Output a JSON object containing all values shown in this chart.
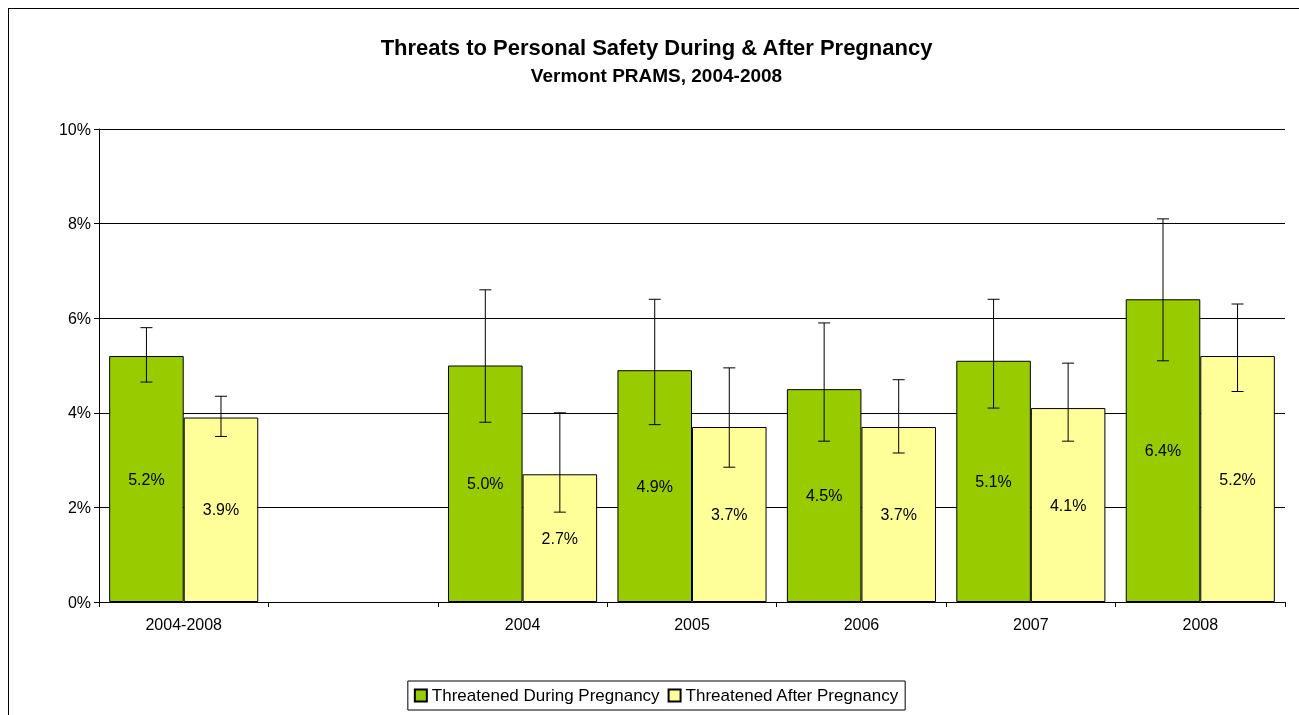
{
  "chart_data": {
    "type": "bar",
    "title": "Threats to Personal Safety During & After Pregnancy",
    "subtitle": "Vermont PRAMS, 2004-2008",
    "categories": [
      "2004-2008",
      null,
      "2004",
      "2005",
      "2006",
      "2007",
      "2008"
    ],
    "series": [
      {
        "name": "Threatened During Pregnancy",
        "color": "#99cc00",
        "values": [
          5.2,
          null,
          5.0,
          4.9,
          4.5,
          5.1,
          6.4
        ],
        "value_labels": [
          "5.2%",
          null,
          "5.0%",
          "4.9%",
          "4.5%",
          "5.1%",
          "6.4%"
        ],
        "errors": [
          [
            4.65,
            5.8
          ],
          null,
          [
            3.8,
            6.6
          ],
          [
            3.75,
            6.4
          ],
          [
            3.4,
            5.9
          ],
          [
            4.1,
            6.4
          ],
          [
            5.1,
            8.1
          ]
        ]
      },
      {
        "name": "Threatened After Pregnancy",
        "color": "#ffff99",
        "values": [
          3.9,
          null,
          2.7,
          3.7,
          3.7,
          4.1,
          5.2
        ],
        "value_labels": [
          "3.9%",
          null,
          "2.7%",
          "3.7%",
          "3.7%",
          "4.1%",
          "5.2%"
        ],
        "errors": [
          [
            3.5,
            4.35
          ],
          null,
          [
            1.9,
            4.0
          ],
          [
            2.85,
            4.95
          ],
          [
            3.15,
            4.7
          ],
          [
            3.4,
            5.05
          ],
          [
            4.45,
            6.3
          ]
        ]
      }
    ],
    "ylim": [
      0,
      10
    ],
    "yticks": [
      {
        "value": 0,
        "label": "0%"
      },
      {
        "value": 2,
        "label": "2%"
      },
      {
        "value": 4,
        "label": "4%"
      },
      {
        "value": 6,
        "label": "6%"
      },
      {
        "value": 8,
        "label": "8%"
      },
      {
        "value": 10,
        "label": "10%"
      }
    ],
    "grid": "y",
    "legend": "bottom"
  }
}
